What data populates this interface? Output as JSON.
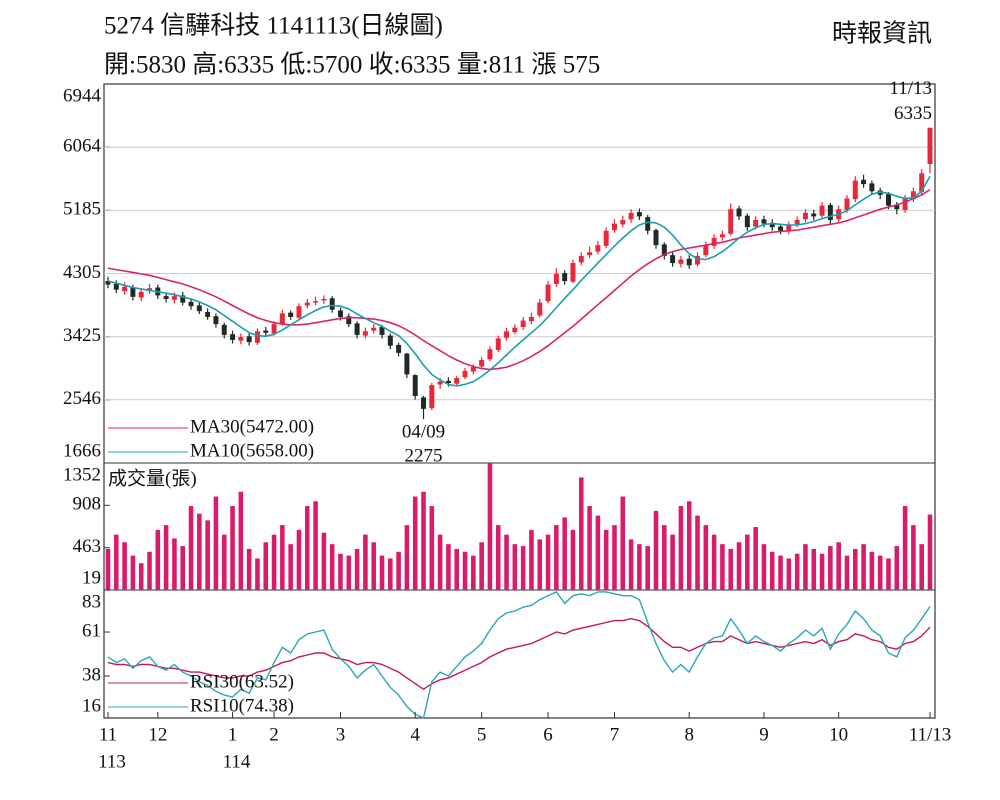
{
  "header": {
    "title": "5274  信驊科技 1141113(日線圖)",
    "quote": "開:5830 高:6335 低:5700 收:6335 量:811 漲 575",
    "source": "時報資訊"
  },
  "x_axis": {
    "xlim": [
      0,
      99
    ],
    "xticks": [
      {
        "value": 0,
        "label": "11"
      },
      {
        "value": 6,
        "label": "12"
      },
      {
        "value": 15,
        "label": "1"
      },
      {
        "value": 20,
        "label": "2"
      },
      {
        "value": 28,
        "label": "3"
      },
      {
        "value": 37,
        "label": "4"
      },
      {
        "value": 45,
        "label": "5"
      },
      {
        "value": 53,
        "label": "6"
      },
      {
        "value": 61,
        "label": "7"
      },
      {
        "value": 70,
        "label": "8"
      },
      {
        "value": 79,
        "label": "9"
      },
      {
        "value": 88,
        "label": "10"
      },
      {
        "value": 99,
        "label": "11/13"
      }
    ],
    "year_ticks": [
      {
        "value": 0,
        "label": "113"
      },
      {
        "value": 15,
        "label": "114"
      }
    ]
  },
  "chart_data": [
    {
      "type": "candlestick",
      "ylim": [
        1666,
        6944
      ],
      "yticks": [
        1666,
        2546,
        3425,
        4305,
        5185,
        6064,
        6944
      ],
      "grid": true,
      "up_color": "#e8273a",
      "down_color": "#1f2a24",
      "open": [
        4200,
        4160,
        4060,
        4110,
        3970,
        4060,
        4110,
        3990,
        3940,
        4000,
        3910,
        3860,
        3770,
        3710,
        3590,
        3460,
        3370,
        3430,
        3340,
        3510,
        3470,
        3610,
        3760,
        3690,
        3860,
        3900,
        3930,
        3960,
        3790,
        3710,
        3610,
        3440,
        3510,
        3560,
        3440,
        3310,
        3190,
        2890,
        2580,
        2430,
        2760,
        2810,
        2770,
        2860,
        2940,
        3010,
        3110,
        3240,
        3410,
        3490,
        3560,
        3640,
        3720,
        3920,
        4160,
        4310,
        4190,
        4460,
        4560,
        4610,
        4690,
        4910,
        4990,
        5060,
        5160,
        5090,
        4910,
        4710,
        4560,
        4440,
        4510,
        4430,
        4560,
        4690,
        4810,
        4860,
        5210,
        5110,
        4960,
        5060,
        5010,
        4960,
        4890,
        4990,
        5060,
        5140,
        5110,
        5260,
        5060,
        5190,
        5340,
        5610,
        5560,
        5460,
        5410,
        5260,
        5190,
        5340,
        5440,
        5830
      ],
      "high": [
        4260,
        4210,
        4180,
        4150,
        4100,
        4160,
        4150,
        4030,
        4040,
        4050,
        3960,
        3900,
        3820,
        3750,
        3620,
        3510,
        3470,
        3480,
        3540,
        3560,
        3640,
        3800,
        3790,
        3890,
        3950,
        3980,
        4000,
        3990,
        3830,
        3750,
        3640,
        3550,
        3600,
        3590,
        3470,
        3340,
        3200,
        2900,
        2600,
        2780,
        2850,
        2860,
        2880,
        2990,
        3040,
        3140,
        3290,
        3440,
        3550,
        3600,
        3700,
        3760,
        3950,
        4200,
        4380,
        4350,
        4500,
        4600,
        4680,
        4760,
        4950,
        5060,
        5110,
        5200,
        5210,
        5120,
        4930,
        4740,
        4600,
        4550,
        4560,
        4600,
        4750,
        4850,
        4900,
        5280,
        5250,
        5140,
        5100,
        5110,
        5060,
        5000,
        5030,
        5100,
        5200,
        5190,
        5300,
        5290,
        5250,
        5400,
        5660,
        5680,
        5600,
        5500,
        5440,
        5300,
        5400,
        5500,
        5760,
        6335
      ],
      "low": [
        4100,
        4030,
        4010,
        3930,
        3920,
        4020,
        3950,
        3900,
        3890,
        3860,
        3800,
        3740,
        3660,
        3550,
        3400,
        3330,
        3320,
        3300,
        3310,
        3440,
        3440,
        3580,
        3660,
        3660,
        3820,
        3860,
        3880,
        3760,
        3650,
        3560,
        3400,
        3400,
        3470,
        3400,
        3250,
        3150,
        2850,
        2550,
        2275,
        2400,
        2700,
        2730,
        2740,
        2830,
        2900,
        2980,
        3080,
        3210,
        3370,
        3460,
        3520,
        3600,
        3690,
        3890,
        4120,
        4150,
        4170,
        4420,
        4520,
        4570,
        4660,
        4870,
        4950,
        5010,
        5050,
        4850,
        4650,
        4500,
        4400,
        4390,
        4370,
        4400,
        4530,
        4650,
        4760,
        4830,
        5050,
        4900,
        4920,
        4950,
        4900,
        4850,
        4850,
        4950,
        5020,
        5050,
        5080,
        5000,
        5020,
        5150,
        5300,
        5500,
        5400,
        5340,
        5200,
        5130,
        5150,
        5300,
        5400,
        5700
      ],
      "close": [
        4150,
        4080,
        4120,
        3980,
        4050,
        4100,
        4000,
        3950,
        3990,
        3900,
        3850,
        3780,
        3700,
        3600,
        3450,
        3380,
        3420,
        3350,
        3500,
        3480,
        3600,
        3750,
        3700,
        3850,
        3900,
        3920,
        3950,
        3800,
        3700,
        3600,
        3450,
        3500,
        3550,
        3450,
        3300,
        3200,
        2900,
        2600,
        2420,
        2750,
        2800,
        2780,
        2850,
        2950,
        3000,
        3100,
        3250,
        3400,
        3500,
        3550,
        3650,
        3700,
        3900,
        4150,
        4300,
        4200,
        4450,
        4550,
        4600,
        4700,
        4900,
        5000,
        5050,
        5150,
        5100,
        4900,
        4700,
        4550,
        4450,
        4500,
        4420,
        4550,
        4700,
        4800,
        4850,
        5200,
        5100,
        4950,
        5050,
        5000,
        4950,
        4900,
        4980,
        5050,
        5150,
        5100,
        5250,
        5050,
        5200,
        5350,
        5600,
        5550,
        5450,
        5400,
        5250,
        5200,
        5350,
        5450,
        5700,
        6335
      ],
      "series": [
        {
          "name": "MA30(5472.00)",
          "color": "#d6256f",
          "values": [
            4380,
            4360,
            4340,
            4320,
            4300,
            4280,
            4250,
            4220,
            4190,
            4160,
            4120,
            4080,
            4030,
            3980,
            3920,
            3860,
            3800,
            3740,
            3690,
            3650,
            3620,
            3600,
            3590,
            3590,
            3600,
            3620,
            3640,
            3660,
            3680,
            3690,
            3690,
            3680,
            3670,
            3650,
            3620,
            3580,
            3520,
            3450,
            3370,
            3300,
            3230,
            3160,
            3100,
            3050,
            3010,
            2980,
            2970,
            2980,
            3000,
            3040,
            3090,
            3150,
            3220,
            3300,
            3390,
            3480,
            3570,
            3670,
            3770,
            3870,
            3970,
            4070,
            4170,
            4270,
            4360,
            4440,
            4510,
            4570,
            4610,
            4640,
            4660,
            4680,
            4700,
            4720,
            4740,
            4770,
            4800,
            4820,
            4840,
            4860,
            4880,
            4890,
            4900,
            4910,
            4930,
            4950,
            4970,
            4990,
            5010,
            5040,
            5080,
            5120,
            5160,
            5200,
            5230,
            5260,
            5300,
            5350,
            5400,
            5472
          ]
        },
        {
          "name": "MA10(5658.00)",
          "color": "#1a9fb0",
          "values": [
            4200,
            4170,
            4140,
            4110,
            4090,
            4070,
            4050,
            4030,
            4010,
            3980,
            3950,
            3910,
            3860,
            3800,
            3720,
            3640,
            3560,
            3480,
            3440,
            3430,
            3460,
            3520,
            3590,
            3660,
            3730,
            3790,
            3840,
            3860,
            3850,
            3810,
            3740,
            3680,
            3620,
            3570,
            3500,
            3440,
            3330,
            3190,
            3030,
            2900,
            2820,
            2760,
            2740,
            2760,
            2800,
            2870,
            2960,
            3060,
            3170,
            3280,
            3380,
            3480,
            3580,
            3700,
            3830,
            3960,
            4080,
            4210,
            4330,
            4450,
            4570,
            4690,
            4800,
            4900,
            4980,
            5020,
            5010,
            4950,
            4840,
            4700,
            4580,
            4510,
            4500,
            4540,
            4610,
            4700,
            4800,
            4880,
            4940,
            4990,
            5000,
            4990,
            4980,
            4980,
            5000,
            5030,
            5070,
            5100,
            5130,
            5180,
            5260,
            5340,
            5410,
            5440,
            5420,
            5380,
            5350,
            5360,
            5450,
            5658
          ]
        }
      ],
      "annotations": [
        {
          "x": 99,
          "text": "11/13",
          "value": 6335,
          "position": "above"
        },
        {
          "x": 38,
          "text": "04/09",
          "value": 2275,
          "position": "below"
        }
      ]
    },
    {
      "type": "bar",
      "title": "成交量(張)",
      "color": "#d81b6a",
      "ylim": [
        19,
        1352
      ],
      "yticks": [
        19,
        463,
        908,
        1352
      ],
      "values": [
        450,
        600,
        520,
        380,
        300,
        420,
        650,
        700,
        560,
        480,
        900,
        820,
        750,
        1000,
        600,
        900,
        1050,
        450,
        350,
        520,
        600,
        700,
        500,
        650,
        900,
        950,
        620,
        500,
        400,
        380,
        450,
        600,
        520,
        380,
        350,
        420,
        700,
        1000,
        1050,
        900,
        600,
        500,
        450,
        420,
        380,
        520,
        1352,
        700,
        600,
        500,
        480,
        650,
        550,
        600,
        700,
        780,
        650,
        1200,
        900,
        800,
        650,
        700,
        1000,
        550,
        500,
        480,
        850,
        700,
        600,
        900,
        950,
        800,
        700,
        600,
        500,
        450,
        520,
        600,
        680,
        500,
        420,
        380,
        350,
        400,
        500,
        450,
        400,
        480,
        520,
        380,
        450,
        500,
        420,
        380,
        350,
        480,
        900,
        700,
        500,
        811
      ]
    },
    {
      "type": "line",
      "ylim": [
        16,
        83
      ],
      "yticks": [
        16,
        38,
        61,
        83
      ],
      "series": [
        {
          "name": "RSI30(63.52)",
          "color": "#c2185b",
          "values": [
            45,
            44,
            44,
            43,
            44,
            44,
            43,
            42,
            42,
            41,
            40,
            40,
            39,
            38,
            37,
            37,
            38,
            38,
            40,
            41,
            43,
            45,
            46,
            48,
            49,
            50,
            50,
            48,
            47,
            46,
            44,
            45,
            45,
            44,
            42,
            40,
            37,
            34,
            31,
            34,
            36,
            37,
            39,
            41,
            43,
            45,
            48,
            50,
            52,
            53,
            54,
            55,
            57,
            59,
            61,
            60,
            62,
            63,
            64,
            65,
            66,
            67,
            67,
            68,
            67,
            64,
            60,
            56,
            53,
            53,
            51,
            53,
            55,
            56,
            56,
            59,
            57,
            55,
            56,
            55,
            54,
            53,
            54,
            55,
            56,
            55,
            57,
            54,
            56,
            57,
            60,
            59,
            57,
            56,
            53,
            52,
            55,
            56,
            59,
            63.52
          ]
        },
        {
          "name": "RSI10(74.38)",
          "color": "#2aa7b8",
          "values": [
            48,
            45,
            47,
            42,
            46,
            48,
            43,
            41,
            44,
            40,
            38,
            35,
            33,
            30,
            28,
            27,
            31,
            29,
            37,
            36,
            45,
            53,
            50,
            57,
            60,
            61,
            62,
            52,
            47,
            43,
            37,
            41,
            44,
            38,
            32,
            28,
            22,
            18,
            16,
            35,
            40,
            38,
            43,
            48,
            51,
            55,
            62,
            68,
            71,
            72,
            74,
            75,
            78,
            80,
            82,
            76,
            80,
            81,
            80,
            82,
            82,
            81,
            80,
            80,
            78,
            66,
            55,
            46,
            40,
            44,
            40,
            48,
            55,
            58,
            59,
            68,
            62,
            55,
            59,
            56,
            54,
            51,
            55,
            58,
            62,
            59,
            63,
            52,
            60,
            65,
            72,
            68,
            62,
            59,
            50,
            48,
            58,
            62,
            68,
            74.38
          ]
        }
      ]
    }
  ]
}
